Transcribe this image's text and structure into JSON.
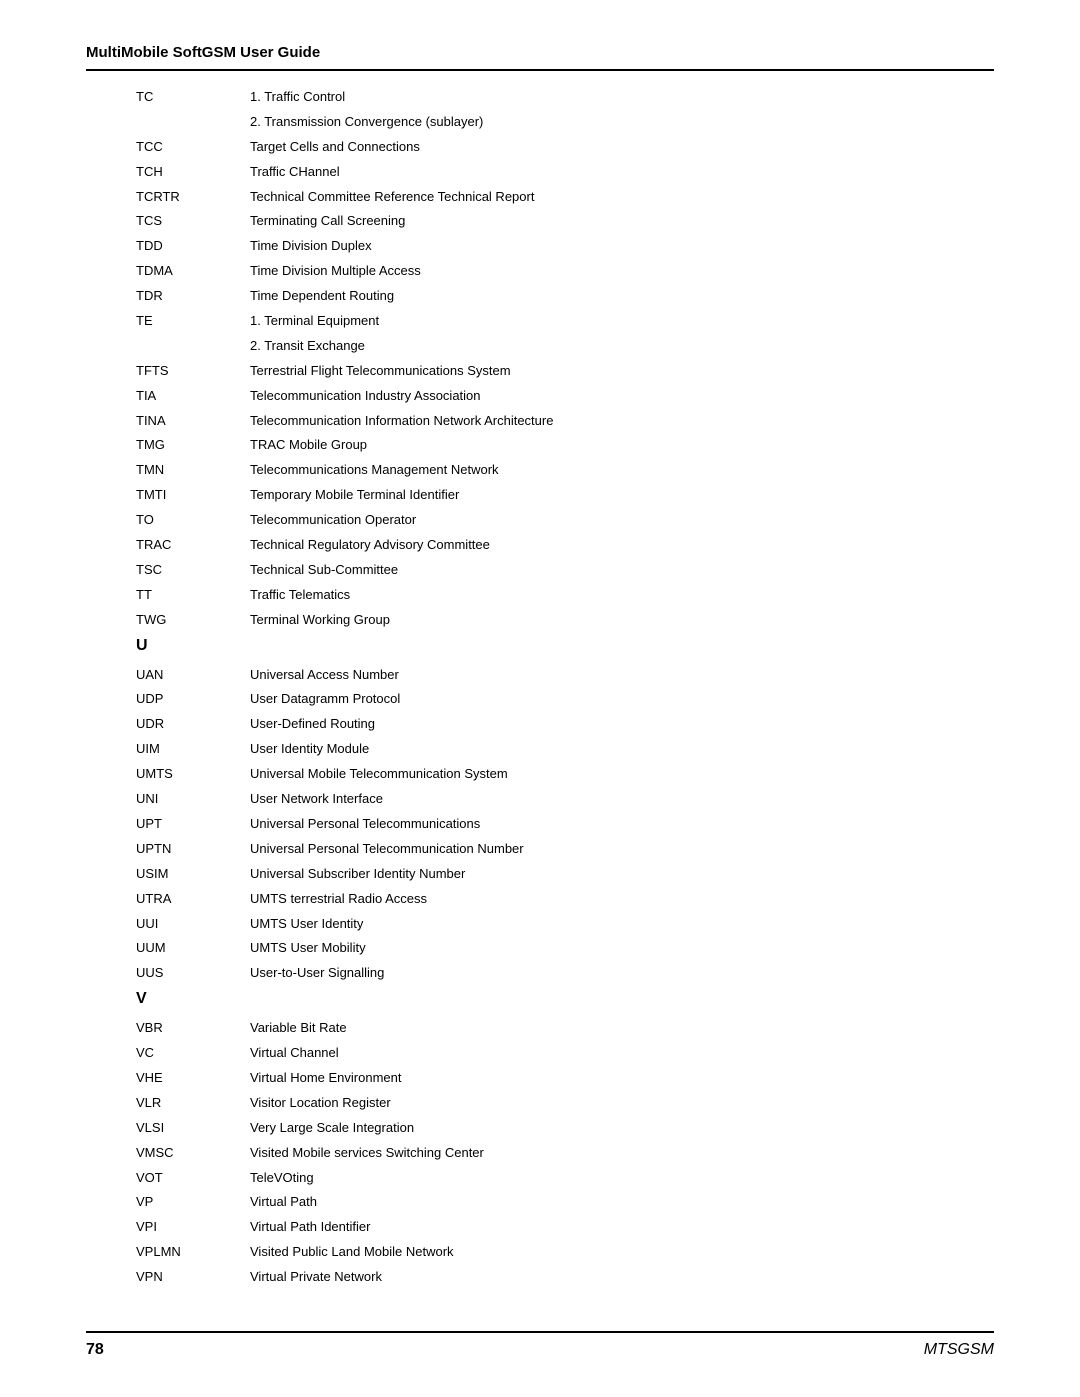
{
  "header": {
    "title": "MultiMobile SoftGSM User Guide"
  },
  "glossary": {
    "entries": [
      {
        "abbr": "TC",
        "def": "1. Traffic Control"
      },
      {
        "abbr": "",
        "def": "2. Transmission Convergence (sublayer)"
      },
      {
        "abbr": "TCC",
        "def": "Target Cells and Connections"
      },
      {
        "abbr": "TCH",
        "def": "Traffic CHannel"
      },
      {
        "abbr": "TCRTR",
        "def": "Technical Committee Reference Technical Report"
      },
      {
        "abbr": "TCS",
        "def": "Terminating Call Screening"
      },
      {
        "abbr": "TDD",
        "def": "Time Division Duplex"
      },
      {
        "abbr": "TDMA",
        "def": "Time Division Multiple Access"
      },
      {
        "abbr": "TDR",
        "def": "Time Dependent Routing"
      },
      {
        "abbr": "TE",
        "def": "1. Terminal Equipment"
      },
      {
        "abbr": "",
        "def": "2. Transit Exchange"
      },
      {
        "abbr": "TFTS",
        "def": "Terrestrial Flight Telecommunications System"
      },
      {
        "abbr": "TIA",
        "def": "Telecommunication Industry Association"
      },
      {
        "abbr": "TINA",
        "def": "Telecommunication Information Network Architecture"
      },
      {
        "abbr": "TMG",
        "def": "TRAC Mobile Group"
      },
      {
        "abbr": "TMN",
        "def": "Telecommunications Management Network"
      },
      {
        "abbr": "TMTI",
        "def": "Temporary Mobile Terminal Identifier"
      },
      {
        "abbr": "TO",
        "def": "Telecommunication Operator"
      },
      {
        "abbr": "TRAC",
        "def": "Technical Regulatory Advisory Committee"
      },
      {
        "abbr": "TSC",
        "def": "Technical Sub-Committee"
      },
      {
        "abbr": "TT",
        "def": "Traffic Telematics"
      },
      {
        "abbr": "TWG",
        "def": "Terminal Working Group"
      },
      {
        "section": "U"
      },
      {
        "abbr": "UAN",
        "def": "Universal Access Number"
      },
      {
        "abbr": "UDP",
        "def": "User Datagramm Protocol"
      },
      {
        "abbr": "UDR",
        "def": "User-Defined Routing"
      },
      {
        "abbr": "UIM",
        "def": "User Identity Module"
      },
      {
        "abbr": "UMTS",
        "def": "Universal Mobile Telecommunication System"
      },
      {
        "abbr": "UNI",
        "def": "User Network Interface"
      },
      {
        "abbr": "UPT",
        "def": "Universal Personal Telecommunications"
      },
      {
        "abbr": "UPTN",
        "def": "Universal Personal Telecommunication Number"
      },
      {
        "abbr": "USIM",
        "def": "Universal Subscriber Identity Number"
      },
      {
        "abbr": "UTRA",
        "def": "UMTS terrestrial Radio Access"
      },
      {
        "abbr": "UUI",
        "def": "UMTS User Identity"
      },
      {
        "abbr": "UUM",
        "def": "UMTS User Mobility"
      },
      {
        "abbr": "UUS",
        "def": "User-to-User Signalling"
      },
      {
        "section": "V"
      },
      {
        "abbr": "VBR",
        "def": "Variable Bit Rate"
      },
      {
        "abbr": "VC",
        "def": "Virtual Channel"
      },
      {
        "abbr": "VHE",
        "def": "Virtual Home Environment"
      },
      {
        "abbr": "VLR",
        "def": "Visitor Location Register"
      },
      {
        "abbr": "VLSI",
        "def": "Very Large Scale Integration"
      },
      {
        "abbr": "VMSC",
        "def": "Visited Mobile services Switching Center"
      },
      {
        "abbr": "VOT",
        "def": "TeleVOting"
      },
      {
        "abbr": "VP",
        "def": "Virtual Path"
      },
      {
        "abbr": "VPI",
        "def": "Virtual Path Identifier"
      },
      {
        "abbr": "VPLMN",
        "def": "Visited Public Land Mobile Network"
      },
      {
        "abbr": "VPN",
        "def": "Virtual Private Network"
      }
    ]
  },
  "footer": {
    "page": "78",
    "brand": "MTSGSM"
  }
}
